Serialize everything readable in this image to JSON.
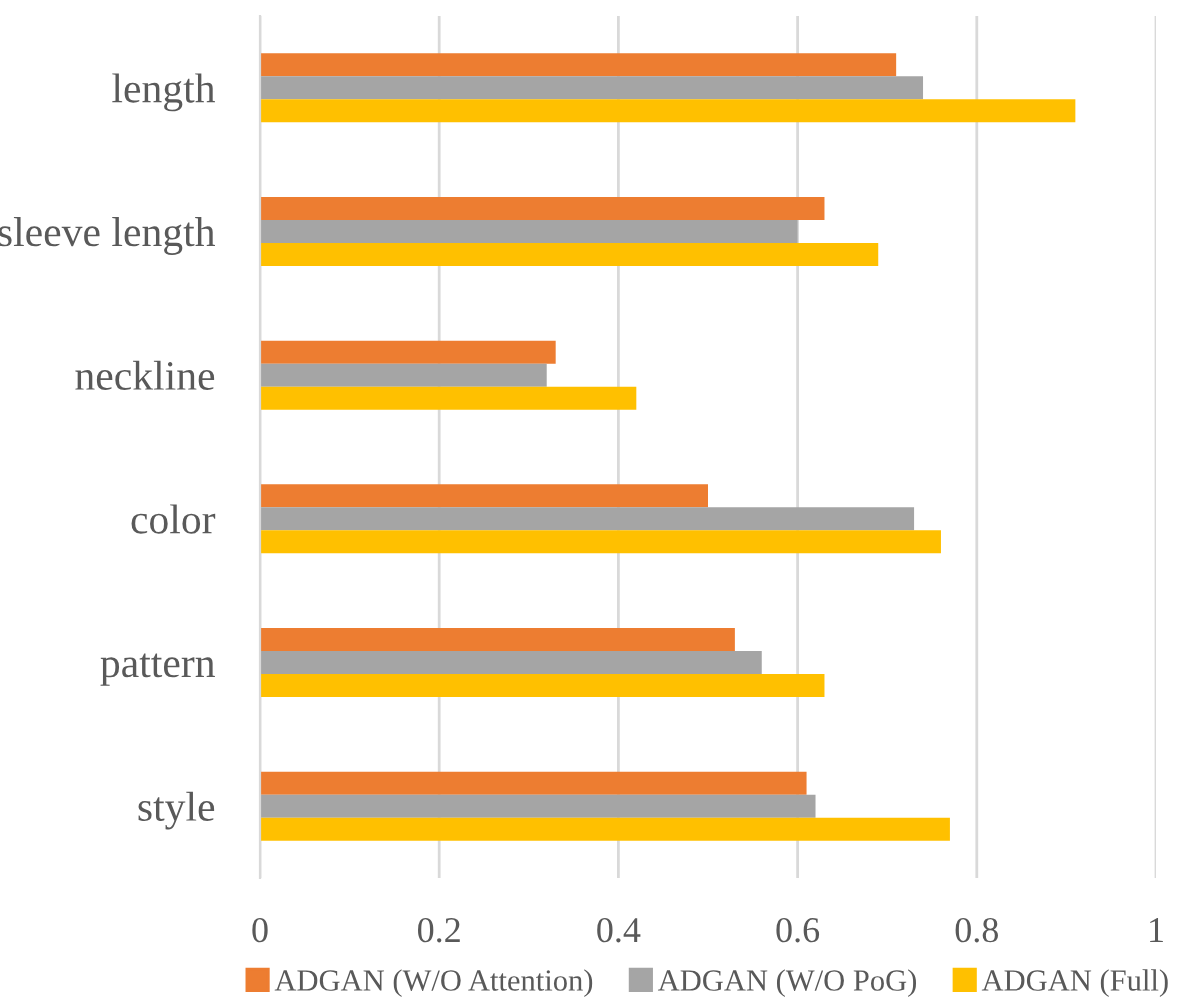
{
  "chart_data": {
    "type": "bar",
    "orientation": "horizontal",
    "categories": [
      "length",
      "sleeve length",
      "neckline",
      "color",
      "pattern",
      "style"
    ],
    "series": [
      {
        "name": "ADGAN (W/O Attention)",
        "color": "#ed7d31",
        "values": [
          0.71,
          0.63,
          0.33,
          0.5,
          0.53,
          0.61
        ]
      },
      {
        "name": "ADGAN (W/O PoG)",
        "color": "#a5a5a5",
        "values": [
          0.74,
          0.6,
          0.32,
          0.73,
          0.56,
          0.62
        ]
      },
      {
        "name": "ADGAN (Full)",
        "color": "#ffc000",
        "values": [
          0.91,
          0.69,
          0.42,
          0.76,
          0.63,
          0.77
        ]
      }
    ],
    "xlim": [
      0,
      1
    ],
    "xticks": [
      0,
      0.2,
      0.4,
      0.6,
      0.8,
      1
    ],
    "grid": "x",
    "legend": "bottom"
  }
}
